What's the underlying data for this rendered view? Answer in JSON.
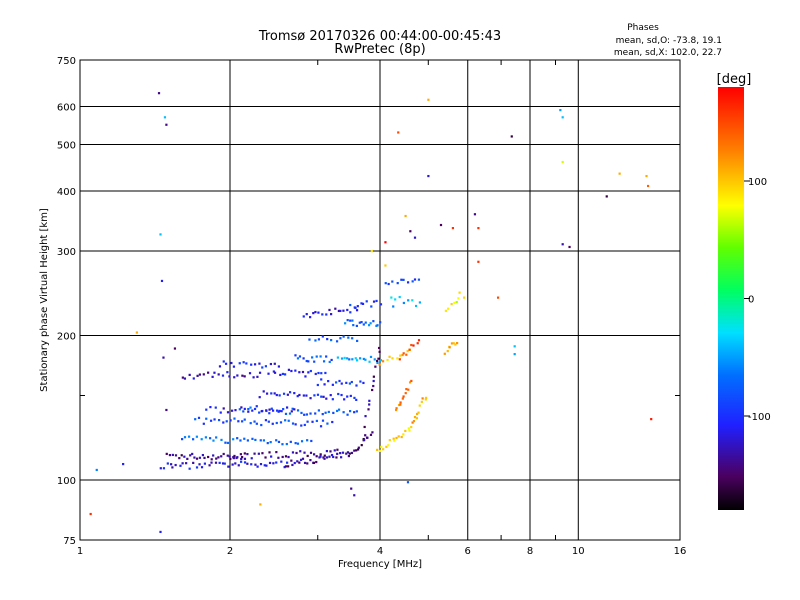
{
  "chart_data": {
    "type": "scatter",
    "title": "Tromsø 20170326 00:44:00-00:45:43",
    "subtitle": "RwPretec (8p)",
    "xlabel": "Frequency [MHz]",
    "ylabel": "Stationary phase Virtual Height [km]",
    "x_scale": "log",
    "y_scale": "log",
    "xlim": [
      1,
      16
    ],
    "ylim": [
      75,
      750
    ],
    "x_ticks": [
      1,
      2,
      4,
      6,
      8,
      10,
      16
    ],
    "x_tick_labels": [
      "1",
      "2",
      "4",
      "6",
      "8",
      "10",
      "16"
    ],
    "x_minor_ticks": [
      3,
      5,
      7,
      9
    ],
    "y_ticks": [
      75,
      100,
      200,
      300,
      400,
      500,
      600,
      750
    ],
    "y_tick_labels": [
      "75",
      "100",
      "200",
      "300",
      "400",
      "500",
      "600",
      "750"
    ],
    "y_minor_ticks": [
      150
    ],
    "grid": true,
    "phases_info": {
      "title": "Phases",
      "line_o": "mean, sd,O: -73.8, 19.1",
      "line_x": "mean, sd,X: 102.0, 22.7"
    },
    "colorbar": {
      "label": "[deg]",
      "range": [
        -180,
        180
      ],
      "ticks": [
        100,
        0,
        -100
      ],
      "tick_labels": [
        "100",
        "0",
        "-100"
      ]
    },
    "series": [
      {
        "traces": [
          {
            "f0": 1.5,
            "f1": 2.15,
            "h0": 112,
            "h1": 112,
            "n": 30,
            "phase": -140
          },
          {
            "f0": 1.45,
            "f1": 2.6,
            "h0": 107,
            "h1": 108,
            "n": 40,
            "phase": -115
          },
          {
            "f0": 2.6,
            "f1": 3.45,
            "h0": 108,
            "h1": 113,
            "n": 30,
            "phase": -135
          },
          {
            "f0": 3.45,
            "f1": 3.85,
            "h0": 113,
            "h1": 125,
            "n": 14,
            "phase": -150
          },
          {
            "f0": 2.0,
            "f1": 3.3,
            "h0": 112,
            "h1": 114,
            "n": 32,
            "phase": -135
          },
          {
            "f0": 1.6,
            "f1": 2.9,
            "h0": 122,
            "h1": 120,
            "n": 34,
            "phase": -70
          },
          {
            "f0": 1.7,
            "f1": 3.2,
            "h0": 133,
            "h1": 131,
            "n": 36,
            "phase": -85
          },
          {
            "f0": 2.1,
            "f1": 3.6,
            "h0": 140,
            "h1": 138,
            "n": 34,
            "phase": -80
          },
          {
            "f0": 1.8,
            "f1": 2.7,
            "h0": 140,
            "h1": 141,
            "n": 22,
            "phase": -115
          },
          {
            "f0": 2.3,
            "f1": 3.6,
            "h0": 151,
            "h1": 149,
            "n": 30,
            "phase": -105
          },
          {
            "f0": 1.6,
            "f1": 2.3,
            "h0": 165,
            "h1": 166,
            "n": 22,
            "phase": -125
          },
          {
            "f0": 1.9,
            "f1": 2.5,
            "h0": 175,
            "h1": 173,
            "n": 16,
            "phase": -105
          },
          {
            "f0": 2.4,
            "f1": 3.1,
            "h0": 168,
            "h1": 166,
            "n": 18,
            "phase": -110
          },
          {
            "f0": 2.7,
            "f1": 3.2,
            "h0": 180,
            "h1": 178,
            "n": 14,
            "phase": -80
          },
          {
            "f0": 3.3,
            "f1": 4.0,
            "h0": 180,
            "h1": 178,
            "n": 16,
            "phase": -50
          },
          {
            "f0": 3.0,
            "f1": 3.7,
            "h0": 160,
            "h1": 158,
            "n": 14,
            "phase": -95
          },
          {
            "f0": 3.4,
            "f1": 4.0,
            "h0": 213,
            "h1": 212,
            "n": 16,
            "phase": -70
          },
          {
            "f0": 2.8,
            "f1": 3.6,
            "h0": 220,
            "h1": 228,
            "n": 18,
            "phase": -115
          },
          {
            "f0": 3.5,
            "f1": 4.0,
            "h0": 230,
            "h1": 235,
            "n": 10,
            "phase": -95
          },
          {
            "f0": 2.9,
            "f1": 3.6,
            "h0": 198,
            "h1": 196,
            "n": 12,
            "phase": -85
          },
          {
            "f0": 3.7,
            "f1": 4.0,
            "h0": 120,
            "h1": 190,
            "n": 16,
            "phase": -140
          },
          {
            "f0": 3.95,
            "f1": 4.6,
            "h0": 115,
            "h1": 128,
            "n": 16,
            "phase": 95
          },
          {
            "f0": 4.6,
            "f1": 4.95,
            "h0": 128,
            "h1": 150,
            "n": 12,
            "phase": 110
          },
          {
            "f0": 4.3,
            "f1": 4.6,
            "h0": 140,
            "h1": 160,
            "n": 12,
            "phase": 130
          },
          {
            "f0": 4.0,
            "f1": 4.6,
            "h0": 175,
            "h1": 185,
            "n": 10,
            "phase": 105
          },
          {
            "f0": 4.4,
            "f1": 4.8,
            "h0": 180,
            "h1": 195,
            "n": 8,
            "phase": 150
          },
          {
            "f0": 5.4,
            "f1": 5.7,
            "h0": 185,
            "h1": 195,
            "n": 8,
            "phase": 110
          },
          {
            "f0": 4.1,
            "f1": 4.8,
            "h0": 255,
            "h1": 262,
            "n": 10,
            "phase": -90
          },
          {
            "f0": 4.2,
            "f1": 4.8,
            "h0": 240,
            "h1": 232,
            "n": 8,
            "phase": -40
          },
          {
            "f0": 5.4,
            "f1": 5.8,
            "h0": 225,
            "h1": 245,
            "n": 6,
            "phase": 80
          }
        ],
        "points": [
          [
            1.05,
            85,
            160
          ],
          [
            1.08,
            105,
            -60
          ],
          [
            1.22,
            108,
            -110
          ],
          [
            1.3,
            203,
            110
          ],
          [
            1.44,
            640,
            -140
          ],
          [
            1.48,
            570,
            -40
          ],
          [
            1.49,
            550,
            -140
          ],
          [
            1.45,
            325,
            -40
          ],
          [
            1.46,
            260,
            -110
          ],
          [
            1.47,
            180,
            -130
          ],
          [
            1.49,
            140,
            -140
          ],
          [
            1.45,
            78,
            -110
          ],
          [
            1.55,
            188,
            -150
          ],
          [
            2.3,
            89,
            110
          ],
          [
            3.5,
            96,
            -140
          ],
          [
            3.55,
            93,
            -130
          ],
          [
            4.55,
            99,
            -80
          ],
          [
            4.1,
            313,
            180
          ],
          [
            4.35,
            530,
            150
          ],
          [
            4.5,
            355,
            110
          ],
          [
            4.6,
            330,
            -150
          ],
          [
            4.7,
            320,
            -120
          ],
          [
            5.0,
            620,
            110
          ],
          [
            5.0,
            430,
            -120
          ],
          [
            5.3,
            340,
            -150
          ],
          [
            5.6,
            335,
            160
          ],
          [
            6.2,
            358,
            -140
          ],
          [
            6.3,
            335,
            160
          ],
          [
            6.3,
            285,
            160
          ],
          [
            6.9,
            240,
            150
          ],
          [
            7.35,
            520,
            -160
          ],
          [
            7.45,
            190,
            -40
          ],
          [
            7.45,
            183,
            -50
          ],
          [
            9.2,
            590,
            -50
          ],
          [
            9.3,
            570,
            -40
          ],
          [
            9.3,
            460,
            70
          ],
          [
            9.3,
            310,
            -130
          ],
          [
            9.6,
            306,
            -150
          ],
          [
            11.4,
            390,
            -160
          ],
          [
            12.1,
            435,
            110
          ],
          [
            13.7,
            430,
            110
          ],
          [
            13.8,
            410,
            140
          ],
          [
            14.0,
            134,
            170
          ],
          [
            3.85,
            300,
            90
          ],
          [
            4.1,
            280,
            100
          ],
          [
            5.9,
            240,
            95
          ],
          [
            5.7,
            235,
            60
          ],
          [
            4.25,
            230,
            -60
          ]
        ]
      }
    ]
  }
}
